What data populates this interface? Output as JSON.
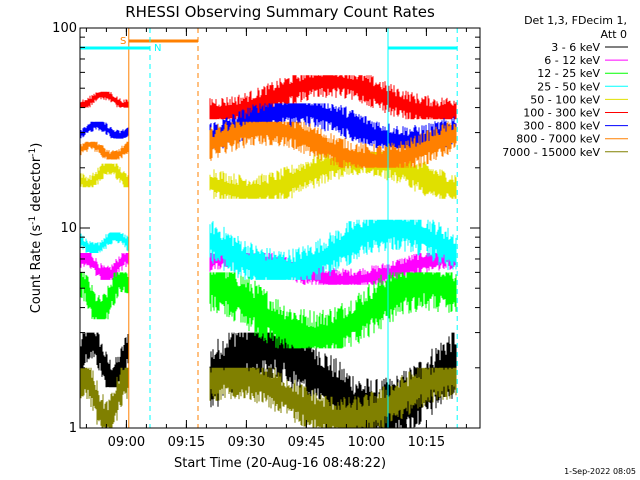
{
  "chart_data": {
    "type": "line",
    "title": "RHESSI Observing Summary Count Rates",
    "xlabel": "Start Time (20-Aug-16 08:48:22)",
    "ylabel": "Count Rate (s",
    "ylabel_exp": "-1",
    "ylabel_tail": " detector",
    "ylabel_tail_exp": "-1",
    "ylabel_close": ")",
    "yscale": "log",
    "ylim": [
      1,
      100
    ],
    "xlim_minutes_from_start": [
      0,
      100
    ],
    "x_ticks": [
      {
        "minute": 11.6,
        "label": "09:00"
      },
      {
        "minute": 26.6,
        "label": "09:15"
      },
      {
        "minute": 41.6,
        "label": "09:30"
      },
      {
        "minute": 56.6,
        "label": "09:45"
      },
      {
        "minute": 71.6,
        "label": "10:00"
      },
      {
        "minute": 86.6,
        "label": "10:15"
      }
    ],
    "y_ticks": [
      {
        "value": 1,
        "label": "1"
      },
      {
        "value": 10,
        "label": "10"
      },
      {
        "value": 100,
        "label": "100"
      }
    ],
    "legend_header": [
      "Det 1,3, FDecim 1,",
      "Att 0"
    ],
    "series": [
      {
        "name": "3 - 6 keV",
        "color": "#000000",
        "segments": [
          {
            "x0": 0,
            "x1": 12,
            "lo": 1.6,
            "hi": 3.0
          },
          {
            "x0": 32.5,
            "x1": 94,
            "lo": 1.0,
            "hi": 3.0
          }
        ]
      },
      {
        "name": "6 - 12 keV",
        "color": "#ff00ff",
        "segments": [
          {
            "x0": 0,
            "x1": 12,
            "lo": 5.5,
            "hi": 7.5
          },
          {
            "x0": 32.5,
            "x1": 94,
            "lo": 5.2,
            "hi": 7.5
          }
        ]
      },
      {
        "name": "12 - 25 keV",
        "color": "#00ff00",
        "segments": [
          {
            "x0": 0,
            "x1": 12,
            "lo": 3.5,
            "hi": 6.0
          },
          {
            "x0": 32.5,
            "x1": 94,
            "lo": 2.5,
            "hi": 6.0
          }
        ]
      },
      {
        "name": "25 - 50 keV",
        "color": "#00ffff",
        "segments": [
          {
            "x0": 0,
            "x1": 12,
            "lo": 7.5,
            "hi": 9.5
          },
          {
            "x0": 32.5,
            "x1": 94,
            "lo": 5.5,
            "hi": 11.0
          }
        ]
      },
      {
        "name": "50 - 100 keV",
        "color": "#e0e000",
        "segments": [
          {
            "x0": 0,
            "x1": 12,
            "lo": 16.0,
            "hi": 21.0
          },
          {
            "x0": 32.5,
            "x1": 94,
            "lo": 14.0,
            "hi": 24.0
          }
        ]
      },
      {
        "name": "100 - 300 keV",
        "color": "#ff0000",
        "segments": [
          {
            "x0": 0,
            "x1": 12,
            "lo": 40.0,
            "hi": 48.0
          },
          {
            "x0": 32.5,
            "x1": 94,
            "lo": 35.0,
            "hi": 58.0
          }
        ]
      },
      {
        "name": "300 - 800 keV",
        "color": "#0000ff",
        "segments": [
          {
            "x0": 0,
            "x1": 12,
            "lo": 28.0,
            "hi": 34.0
          },
          {
            "x0": 32.5,
            "x1": 94,
            "lo": 25.0,
            "hi": 42.0
          }
        ]
      },
      {
        "name": "800 - 7000 keV",
        "color": "#ff8000",
        "segments": [
          {
            "x0": 0,
            "x1": 12,
            "lo": 22.0,
            "hi": 27.0
          },
          {
            "x0": 32.5,
            "x1": 94,
            "lo": 20.0,
            "hi": 34.0
          }
        ]
      },
      {
        "name": "7000 - 15000 keV",
        "color": "#808000",
        "segments": [
          {
            "x0": 0,
            "x1": 12,
            "lo": 1.0,
            "hi": 2.0
          },
          {
            "x0": 32.5,
            "x1": 94,
            "lo": 1.0,
            "hi": 2.0
          }
        ]
      }
    ],
    "annotations": [
      {
        "label": "S",
        "color": "#ff8000"
      },
      {
        "label": "N",
        "color": "#00ffff"
      }
    ],
    "timestamp": "1-Sep-2022 08:05"
  }
}
